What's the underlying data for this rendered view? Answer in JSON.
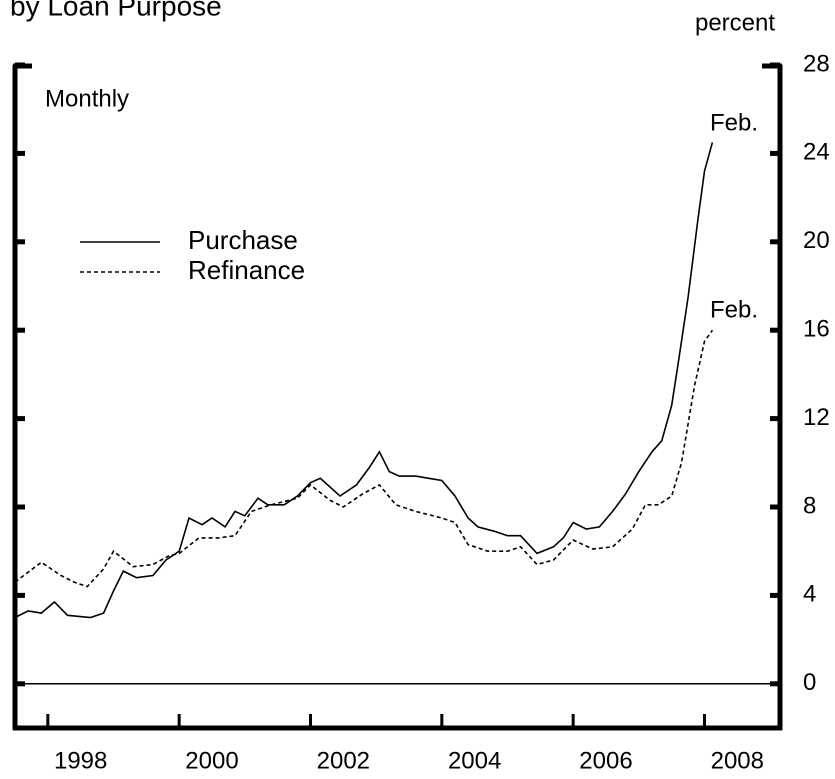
{
  "chart_data": {
    "type": "line",
    "title": "by Loan Purpose",
    "y_axis_label": "percent",
    "subtitle": "Monthly",
    "annotations": [
      "Feb.",
      "Feb."
    ],
    "xlim": [
      1997.5,
      2009.15
    ],
    "ylim": [
      -2,
      28
    ],
    "xticks": [
      1998,
      2000,
      2002,
      2004,
      2006,
      2008
    ],
    "yticks": [
      0,
      4,
      8,
      12,
      16,
      20,
      24,
      28
    ],
    "series": [
      {
        "name": "Purchase",
        "color": "#000000",
        "dash": "solid",
        "x": [
          1997.5,
          1997.7,
          1997.9,
          1998.1,
          1998.3,
          1998.65,
          1998.85,
          1999.0,
          1999.15,
          1999.35,
          1999.6,
          1999.8,
          2000.0,
          2000.15,
          2000.35,
          2000.5,
          2000.7,
          2000.85,
          2001.0,
          2001.2,
          2001.35,
          2001.6,
          2001.8,
          2002.0,
          2002.15,
          2002.45,
          2002.7,
          2002.9,
          2003.05,
          2003.2,
          2003.35,
          2003.6,
          2003.8,
          2004.0,
          2004.2,
          2004.4,
          2004.55,
          2004.8,
          2005.0,
          2005.2,
          2005.45,
          2005.7,
          2005.85,
          2006.0,
          2006.2,
          2006.4,
          2006.6,
          2006.8,
          2007.0,
          2007.2,
          2007.35,
          2007.5,
          2007.6,
          2007.75,
          2007.9,
          2008.0,
          2008.12
        ],
        "values": [
          3.0,
          3.3,
          3.2,
          3.7,
          3.1,
          3.0,
          3.2,
          4.2,
          5.1,
          4.8,
          4.9,
          5.6,
          6.0,
          7.5,
          7.2,
          7.5,
          7.1,
          7.8,
          7.6,
          8.4,
          8.1,
          8.1,
          8.5,
          9.1,
          9.3,
          8.5,
          9.0,
          9.8,
          10.5,
          9.6,
          9.4,
          9.4,
          9.3,
          9.2,
          8.5,
          7.5,
          7.1,
          6.9,
          6.7,
          6.7,
          5.9,
          6.2,
          6.6,
          7.3,
          7.0,
          7.1,
          7.8,
          8.6,
          9.6,
          10.5,
          11.0,
          12.6,
          14.5,
          17.5,
          21.0,
          23.2,
          24.5
        ]
      },
      {
        "name": "Refinance",
        "color": "#000000",
        "dash": "dashed",
        "x": [
          1997.5,
          1997.9,
          1998.2,
          1998.4,
          1998.6,
          1998.85,
          1999.0,
          1999.3,
          1999.6,
          1999.85,
          2000.0,
          2000.3,
          2000.6,
          2000.85,
          2001.1,
          2001.4,
          2001.8,
          2002.0,
          2002.3,
          2002.5,
          2002.8,
          2003.05,
          2003.3,
          2003.6,
          2004.0,
          2004.2,
          2004.4,
          2004.7,
          2005.0,
          2005.2,
          2005.45,
          2005.7,
          2006.0,
          2006.3,
          2006.6,
          2006.9,
          2007.1,
          2007.3,
          2007.5,
          2007.65,
          2007.85,
          2008.0,
          2008.12
        ],
        "values": [
          4.6,
          5.5,
          4.9,
          4.6,
          4.4,
          5.2,
          6.0,
          5.3,
          5.4,
          5.8,
          5.9,
          6.6,
          6.6,
          6.7,
          7.8,
          8.1,
          8.4,
          9.0,
          8.3,
          8.0,
          8.6,
          9.0,
          8.1,
          7.8,
          7.5,
          7.3,
          6.3,
          6.0,
          6.0,
          6.2,
          5.4,
          5.6,
          6.5,
          6.1,
          6.2,
          7.0,
          8.1,
          8.1,
          8.5,
          10.0,
          13.5,
          15.5,
          16.0
        ]
      }
    ],
    "grid": false
  }
}
